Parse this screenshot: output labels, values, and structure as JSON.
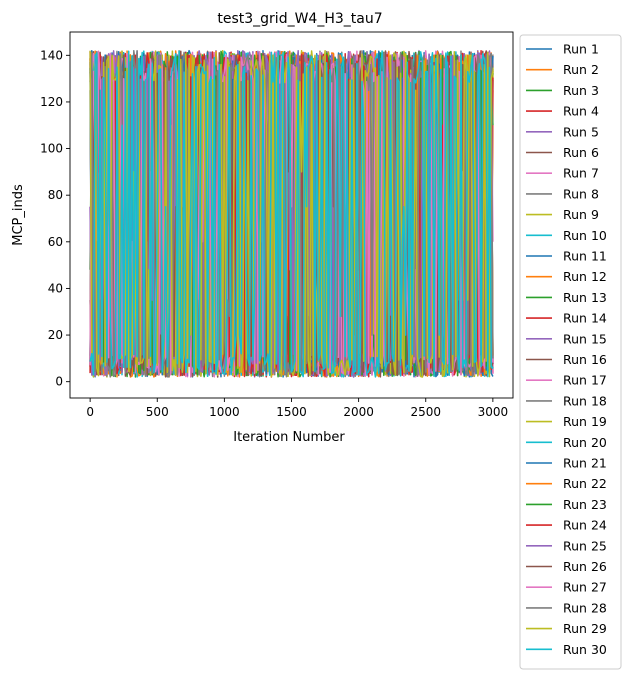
{
  "chart_data": {
    "type": "line",
    "title": "test3_grid_W4_H3_tau7",
    "xlabel": "Iteration Number",
    "ylabel": "MCP_inds",
    "xlim": [
      -150,
      3150
    ],
    "ylim": [
      -7,
      150
    ],
    "xticks": [
      0,
      500,
      1000,
      1500,
      2000,
      2500,
      3000
    ],
    "yticks": [
      0,
      20,
      40,
      60,
      80,
      100,
      120,
      140
    ],
    "x_range": [
      0,
      3000
    ],
    "value_range": [
      0,
      143
    ],
    "grid": false,
    "legend_placement": "outside-right",
    "colors": [
      "#1f77b4",
      "#ff7f0e",
      "#2ca02c",
      "#d62728",
      "#9467bd",
      "#8c564b",
      "#e377c2",
      "#7f7f7f",
      "#bcbd22",
      "#17becf"
    ],
    "series": [
      {
        "name": "Run 1"
      },
      {
        "name": "Run 2"
      },
      {
        "name": "Run 3"
      },
      {
        "name": "Run 4"
      },
      {
        "name": "Run 5"
      },
      {
        "name": "Run 6"
      },
      {
        "name": "Run 7"
      },
      {
        "name": "Run 8"
      },
      {
        "name": "Run 9"
      },
      {
        "name": "Run 10"
      },
      {
        "name": "Run 11"
      },
      {
        "name": "Run 12"
      },
      {
        "name": "Run 13"
      },
      {
        "name": "Run 14"
      },
      {
        "name": "Run 15"
      },
      {
        "name": "Run 16"
      },
      {
        "name": "Run 17"
      },
      {
        "name": "Run 18"
      },
      {
        "name": "Run 19"
      },
      {
        "name": "Run 20"
      },
      {
        "name": "Run 21"
      },
      {
        "name": "Run 22"
      },
      {
        "name": "Run 23"
      },
      {
        "name": "Run 24"
      },
      {
        "name": "Run 25"
      },
      {
        "name": "Run 26"
      },
      {
        "name": "Run 27"
      },
      {
        "name": "Run 28"
      },
      {
        "name": "Run 29"
      },
      {
        "name": "Run 30"
      }
    ]
  }
}
